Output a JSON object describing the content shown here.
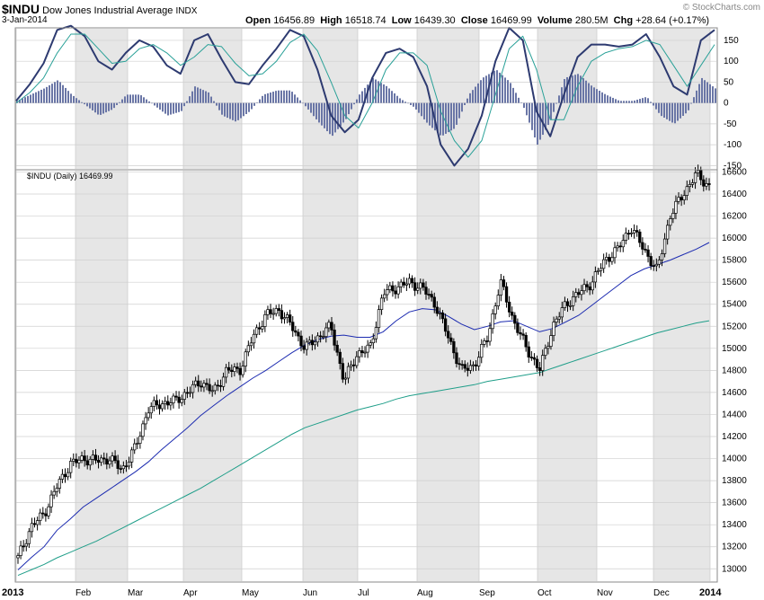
{
  "header": {
    "symbol": "$INDU",
    "name": "Dow Jones Industrial Average",
    "exchange": "INDX",
    "date": "3-Jan-2014",
    "open_label": "Open",
    "open": "16456.89",
    "high_label": "High",
    "high": "16518.74",
    "low_label": "Low",
    "low": "16439.30",
    "close_label": "Close",
    "close": "16469.99",
    "volume_label": "Volume",
    "volume": "280.5M",
    "chg_label": "Chg",
    "chg": "+28.64 (+0.17%)",
    "watermark": "© StockCharts.com"
  },
  "price_panel_label": "$INDU (Daily) 16469.99",
  "chart_data": [
    {
      "type": "line",
      "panel": "oscillator",
      "ylim": [
        -160,
        180
      ],
      "y_ticks": [
        150,
        100,
        50,
        0,
        -50,
        -100,
        -150
      ],
      "x": [
        "Jan-02",
        "Jan-15",
        "Jan-28",
        "Feb-04",
        "Feb-11",
        "Feb-19",
        "Feb-26",
        "Mar-04",
        "Mar-11",
        "Mar-18",
        "Mar-25",
        "Apr-01",
        "Apr-08",
        "Apr-15",
        "Apr-22",
        "Apr-29",
        "May-06",
        "May-13",
        "May-20",
        "May-28",
        "Jun-03",
        "Jun-10",
        "Jun-17",
        "Jun-24",
        "Jul-01",
        "Jul-08",
        "Jul-15",
        "Jul-22",
        "Jul-29",
        "Aug-05",
        "Aug-12",
        "Aug-19",
        "Aug-26",
        "Sep-03",
        "Sep-09",
        "Sep-16",
        "Sep-23",
        "Sep-30",
        "Oct-07",
        "Oct-14",
        "Oct-21",
        "Oct-28",
        "Nov-04",
        "Nov-11",
        "Nov-18",
        "Nov-25",
        "Dec-02",
        "Dec-09",
        "Dec-16",
        "Dec-23",
        "Dec-31",
        "Jan-03"
      ],
      "series": [
        {
          "role": "oscillator",
          "color": "#2d3a70",
          "values": [
            5,
            45,
            95,
            175,
            185,
            160,
            100,
            80,
            120,
            150,
            135,
            90,
            70,
            150,
            165,
            105,
            50,
            45,
            90,
            130,
            175,
            160,
            80,
            -30,
            -70,
            -40,
            60,
            120,
            130,
            110,
            40,
            -100,
            -150,
            -110,
            -30,
            100,
            180,
            150,
            -20,
            -80,
            20,
            110,
            140,
            140,
            135,
            140,
            165,
            110,
            40,
            20,
            150,
            175
          ]
        },
        {
          "role": "signal",
          "color": "#2aa198",
          "values": [
            0,
            25,
            60,
            120,
            165,
            165,
            130,
            95,
            100,
            130,
            140,
            120,
            90,
            110,
            140,
            135,
            95,
            65,
            70,
            100,
            145,
            165,
            125,
            50,
            -30,
            -60,
            0,
            80,
            120,
            120,
            90,
            -20,
            -90,
            -130,
            -90,
            20,
            130,
            160,
            80,
            -40,
            -40,
            40,
            100,
            120,
            130,
            135,
            150,
            140,
            90,
            40,
            90,
            140
          ]
        },
        {
          "role": "histogram",
          "color": "#6a76a6",
          "values": [
            5,
            20,
            35,
            55,
            20,
            -5,
            -30,
            -15,
            20,
            20,
            -5,
            -30,
            -20,
            40,
            25,
            -30,
            -45,
            -20,
            20,
            30,
            30,
            -5,
            -45,
            -80,
            -40,
            20,
            60,
            40,
            10,
            -10,
            -50,
            -80,
            -60,
            20,
            60,
            80,
            50,
            -10,
            -100,
            -40,
            60,
            70,
            40,
            20,
            5,
            5,
            15,
            -30,
            -50,
            -20,
            60,
            35
          ]
        }
      ]
    },
    {
      "type": "candlestick",
      "panel": "price",
      "ylim": [
        12880,
        16620
      ],
      "y_ticks": [
        16600,
        16400,
        16200,
        16000,
        15800,
        15600,
        15400,
        15200,
        15000,
        14800,
        14600,
        14400,
        14200,
        14000,
        13800,
        13600,
        13400,
        13200,
        13000
      ],
      "x_tick_labels": [
        "2013",
        "Feb",
        "Mar",
        "Apr",
        "May",
        "Jun",
        "Jul",
        "Aug",
        "Sep",
        "Oct",
        "Nov",
        "Dec",
        "2014"
      ],
      "x": [
        "Jan-02",
        "Jan-07",
        "Jan-14",
        "Jan-22",
        "Jan-28",
        "Feb-04",
        "Feb-11",
        "Feb-19",
        "Feb-26",
        "Mar-04",
        "Mar-11",
        "Mar-18",
        "Mar-25",
        "Apr-01",
        "Apr-08",
        "Apr-15",
        "Apr-22",
        "Apr-29",
        "May-06",
        "May-13",
        "May-20",
        "May-28",
        "Jun-03",
        "Jun-10",
        "Jun-17",
        "Jun-24",
        "Jul-01",
        "Jul-08",
        "Jul-15",
        "Jul-22",
        "Jul-29",
        "Aug-05",
        "Aug-12",
        "Aug-19",
        "Aug-26",
        "Sep-03",
        "Sep-09",
        "Sep-16",
        "Sep-23",
        "Sep-30",
        "Oct-07",
        "Oct-14",
        "Oct-21",
        "Oct-28",
        "Nov-04",
        "Nov-11",
        "Nov-18",
        "Nov-25",
        "Dec-02",
        "Dec-09",
        "Dec-16",
        "Dec-23",
        "Dec-31",
        "Jan-03"
      ],
      "series": [
        {
          "name": "$INDU (Daily)",
          "role": "close",
          "color": "#000000",
          "values": [
            13100,
            13380,
            13500,
            13750,
            13950,
            14000,
            13980,
            14000,
            13900,
            14100,
            14450,
            14500,
            14520,
            14600,
            14700,
            14600,
            14800,
            14800,
            15100,
            15300,
            15350,
            15200,
            15000,
            15100,
            15200,
            14700,
            14950,
            15000,
            15500,
            15550,
            15600,
            15550,
            15400,
            15100,
            14800,
            14850,
            15100,
            15600,
            15250,
            15000,
            14800,
            15200,
            15400,
            15500,
            15600,
            15800,
            15900,
            16100,
            15900,
            15700,
            16200,
            16400,
            16580,
            16470
          ]
        },
        {
          "name": "",
          "role": "moving-average",
          "color": "#1c2bb0",
          "values": [
            12990,
            13100,
            13200,
            13350,
            13450,
            13560,
            13640,
            13720,
            13800,
            13880,
            13970,
            14080,
            14180,
            14280,
            14390,
            14480,
            14570,
            14650,
            14730,
            14800,
            14880,
            14960,
            15030,
            15080,
            15110,
            15120,
            15100,
            15100,
            15150,
            15250,
            15330,
            15360,
            15350,
            15290,
            15220,
            15170,
            15200,
            15240,
            15250,
            15200,
            15150,
            15180,
            15240,
            15300,
            15390,
            15480,
            15570,
            15660,
            15720,
            15760,
            15800,
            15850,
            15900,
            15960
          ]
        },
        {
          "name": "",
          "role": "moving-average",
          "color": "#1f9e89",
          "values": [
            12940,
            12990,
            13040,
            13100,
            13150,
            13200,
            13250,
            13310,
            13370,
            13430,
            13490,
            13550,
            13610,
            13670,
            13730,
            13800,
            13870,
            13940,
            14010,
            14080,
            14150,
            14220,
            14280,
            14320,
            14360,
            14400,
            14440,
            14470,
            14500,
            14540,
            14570,
            14590,
            14610,
            14630,
            14650,
            14670,
            14700,
            14720,
            14740,
            14760,
            14780,
            14820,
            14860,
            14900,
            14940,
            14980,
            15020,
            15060,
            15100,
            15140,
            15170,
            15200,
            15230,
            15250
          ]
        }
      ]
    }
  ]
}
